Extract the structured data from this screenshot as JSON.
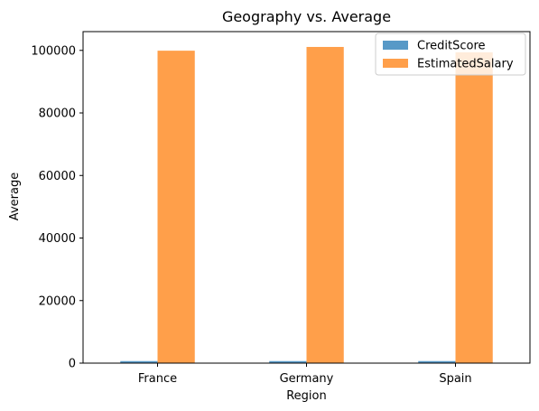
{
  "chart_data": {
    "type": "bar",
    "title": "Geography vs. Average",
    "xlabel": "Region",
    "ylabel": "Average",
    "categories": [
      "France",
      "Germany",
      "Spain"
    ],
    "series": [
      {
        "name": "CreditScore",
        "values": [
          650,
          651,
          652
        ],
        "color": "#1f77b4"
      },
      {
        "name": "EstimatedSalary",
        "values": [
          99900,
          101100,
          99400
        ],
        "color": "#ff7f0e"
      }
    ],
    "bar_opacity": 0.75,
    "ylim": [
      0,
      106000
    ],
    "yticks": [
      0,
      20000,
      40000,
      60000,
      80000,
      100000
    ],
    "ytick_labels": [
      "0",
      "20000",
      "40000",
      "60000",
      "80000",
      "100000"
    ],
    "grid": false,
    "legend_position": "top-right"
  }
}
